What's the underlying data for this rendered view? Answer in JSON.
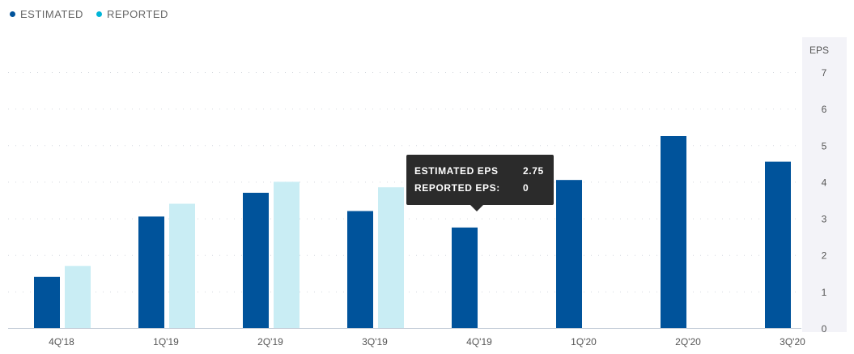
{
  "legend": [
    {
      "label": "ESTIMATED",
      "color": "#00539b"
    },
    {
      "label": "REPORTED",
      "color": "#00b5d8"
    }
  ],
  "tooltip": {
    "row1_label": "ESTIMATED EPS",
    "row1_value": "2.75",
    "row2_label": "REPORTED EPS:",
    "row2_value": "0"
  },
  "chart_data": {
    "type": "bar",
    "categories": [
      "4Q'18",
      "1Q'19",
      "2Q'19",
      "3Q'19",
      "4Q'19",
      "1Q'20",
      "2Q'20",
      "3Q'20"
    ],
    "series": [
      {
        "name": "ESTIMATED",
        "color": "#00539b",
        "values": [
          1.4,
          3.05,
          3.7,
          3.2,
          2.75,
          4.05,
          5.25,
          4.55
        ]
      },
      {
        "name": "REPORTED",
        "color": "#c9edf4",
        "values": [
          1.7,
          3.4,
          4.0,
          3.85,
          null,
          null,
          null,
          null
        ]
      }
    ],
    "ylabel": "EPS",
    "yticks": [
      0,
      1,
      2,
      3,
      4,
      5,
      6,
      7
    ],
    "ylim": [
      0,
      7
    ],
    "grid": true,
    "legend_position": "top-left"
  }
}
